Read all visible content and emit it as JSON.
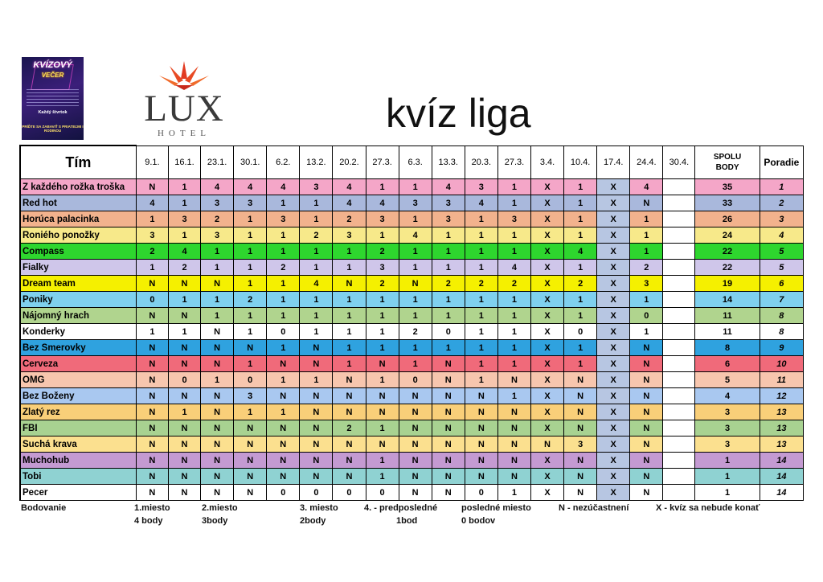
{
  "poster": {
    "title": "KVÍZOVÝ",
    "subtitle": "VEČER",
    "line1": "Každý štvrtok",
    "line2": "PRÍĎTE SA ZABAVIŤ S PRIATEĽMI I RODINOU"
  },
  "logo": {
    "brand": "LUX",
    "sub": "HOTEL"
  },
  "title": "kvíz liga",
  "header": {
    "team": "Tím",
    "dates": [
      "9.1.",
      "16.1.",
      "23.1.",
      "30.1.",
      "6.2.",
      "13.2.",
      "20.2.",
      "27.3.",
      "6.3.",
      "13.3.",
      "20.3.",
      "27.3.",
      "3.4.",
      "10.4.",
      "17.4.",
      "24.4.",
      "30.4."
    ],
    "sum_line1": "SPOLU",
    "sum_line2": "BODY",
    "rank": "Poradie"
  },
  "rows": [
    {
      "team": "Z každého rožka troška",
      "color": "#f4a6c8",
      "scores": [
        "N",
        "1",
        "4",
        "4",
        "4",
        "3",
        "4",
        "1",
        "1",
        "4",
        "3",
        "1",
        "X",
        "1",
        "X",
        "4",
        ""
      ],
      "total": "35",
      "rank": "1"
    },
    {
      "team": "Red hot",
      "color": "#a9b8dc",
      "scores": [
        "4",
        "1",
        "3",
        "3",
        "1",
        "1",
        "4",
        "4",
        "3",
        "3",
        "4",
        "1",
        "X",
        "1",
        "X",
        "N",
        ""
      ],
      "total": "33",
      "rank": "2"
    },
    {
      "team": "Horúca palacinka",
      "color": "#f2b28d",
      "scores": [
        "1",
        "3",
        "2",
        "1",
        "3",
        "1",
        "2",
        "3",
        "1",
        "3",
        "1",
        "3",
        "X",
        "1",
        "X",
        "1",
        ""
      ],
      "total": "26",
      "rank": "3"
    },
    {
      "team": "Roniého ponožky",
      "color": "#f7e98a",
      "scores": [
        "3",
        "1",
        "3",
        "1",
        "1",
        "2",
        "3",
        "1",
        "4",
        "1",
        "1",
        "1",
        "X",
        "1",
        "X",
        "1",
        ""
      ],
      "total": "24",
      "rank": "4"
    },
    {
      "team": "Compass",
      "color": "#2ed62e",
      "scores": [
        "2",
        "4",
        "1",
        "1",
        "1",
        "1",
        "1",
        "2",
        "1",
        "1",
        "1",
        "1",
        "X",
        "4",
        "X",
        "1",
        ""
      ],
      "total": "22",
      "rank": "5"
    },
    {
      "team": "Fialky",
      "color": "#cfc6ea",
      "scores": [
        "1",
        "2",
        "1",
        "1",
        "2",
        "1",
        "1",
        "3",
        "1",
        "1",
        "1",
        "4",
        "X",
        "1",
        "X",
        "2",
        ""
      ],
      "total": "22",
      "rank": "5"
    },
    {
      "team": "Dream team",
      "color": "#f5f000",
      "scores": [
        "N",
        "N",
        "N",
        "1",
        "1",
        "4",
        "N",
        "2",
        "N",
        "2",
        "2",
        "2",
        "X",
        "2",
        "X",
        "3",
        ""
      ],
      "total": "19",
      "rank": "6"
    },
    {
      "team": "Poniky",
      "color": "#7fd0ee",
      "scores": [
        "0",
        "1",
        "1",
        "2",
        "1",
        "1",
        "1",
        "1",
        "1",
        "1",
        "1",
        "1",
        "X",
        "1",
        "X",
        "1",
        ""
      ],
      "total": "14",
      "rank": "7"
    },
    {
      "team": "Nájomný hrach",
      "color": "#b0d48e",
      "scores": [
        "N",
        "N",
        "1",
        "1",
        "1",
        "1",
        "1",
        "1",
        "1",
        "1",
        "1",
        "1",
        "X",
        "1",
        "X",
        "0",
        ""
      ],
      "total": "11",
      "rank": "8"
    },
    {
      "team": "Konderky",
      "color": "#ffffff",
      "scores": [
        "1",
        "1",
        "N",
        "1",
        "0",
        "1",
        "1",
        "1",
        "2",
        "0",
        "1",
        "1",
        "X",
        "0",
        "X",
        "1",
        ""
      ],
      "total": "11",
      "rank": "8"
    },
    {
      "team": "Bez Smerovky",
      "color": "#2fa2df",
      "scores": [
        "N",
        "N",
        "N",
        "N",
        "1",
        "N",
        "1",
        "1",
        "1",
        "1",
        "1",
        "1",
        "X",
        "1",
        "X",
        "N",
        ""
      ],
      "total": "8",
      "rank": "9"
    },
    {
      "team": "Cerveza",
      "color": "#f06a7a",
      "scores": [
        "N",
        "N",
        "N",
        "1",
        "N",
        "N",
        "1",
        "N",
        "1",
        "N",
        "1",
        "1",
        "X",
        "1",
        "X",
        "N",
        ""
      ],
      "total": "6",
      "rank": "10"
    },
    {
      "team": "OMG",
      "color": "#f7c6ae",
      "scores": [
        "N",
        "0",
        "1",
        "0",
        "1",
        "1",
        "N",
        "1",
        "0",
        "N",
        "1",
        "N",
        "X",
        "N",
        "X",
        "N",
        ""
      ],
      "total": "5",
      "rank": "11"
    },
    {
      "team": "Bez Boženy",
      "color": "#a9c8f0",
      "scores": [
        "N",
        "N",
        "N",
        "3",
        "N",
        "N",
        "N",
        "N",
        "N",
        "N",
        "N",
        "1",
        "X",
        "N",
        "X",
        "N",
        ""
      ],
      "total": "4",
      "rank": "12"
    },
    {
      "team": "Zlatý rez",
      "color": "#f9cf79",
      "scores": [
        "N",
        "1",
        "N",
        "1",
        "1",
        "N",
        "N",
        "N",
        "N",
        "N",
        "N",
        "N",
        "X",
        "N",
        "X",
        "N",
        ""
      ],
      "total": "3",
      "rank": "13"
    },
    {
      "team": "FBI",
      "color": "#a8d291",
      "scores": [
        "N",
        "N",
        "N",
        "N",
        "N",
        "N",
        "2",
        "1",
        "N",
        "N",
        "N",
        "N",
        "X",
        "N",
        "X",
        "N",
        ""
      ],
      "total": "3",
      "rank": "13"
    },
    {
      "team": "Suchá krava",
      "color": "#fbe08f",
      "scores": [
        "N",
        "N",
        "N",
        "N",
        "N",
        "N",
        "N",
        "N",
        "N",
        "N",
        "N",
        "N",
        "N",
        "3",
        "X",
        "N",
        ""
      ],
      "total": "3",
      "rank": "13"
    },
    {
      "team": "Muchohub",
      "color": "#c49ad2",
      "scores": [
        "N",
        "N",
        "N",
        "N",
        "N",
        "N",
        "N",
        "1",
        "N",
        "N",
        "N",
        "N",
        "X",
        "N",
        "X",
        "N",
        ""
      ],
      "total": "1",
      "rank": "14"
    },
    {
      "team": "Tobi",
      "color": "#8fd2d2",
      "scores": [
        "N",
        "N",
        "N",
        "N",
        "N",
        "N",
        "N",
        "1",
        "N",
        "N",
        "N",
        "N",
        "X",
        "N",
        "X",
        "N",
        ""
      ],
      "total": "1",
      "rank": "14"
    },
    {
      "team": "Pecer",
      "color": "#ffffff",
      "scores": [
        "N",
        "N",
        "N",
        "N",
        "0",
        "0",
        "0",
        "0",
        "N",
        "N",
        "0",
        "1",
        "X",
        "N",
        "X",
        "N",
        ""
      ],
      "total": "1",
      "rank": "14"
    }
  ],
  "legend": {
    "label": "Bodovanie",
    "first_a": "1.miesto",
    "first_b": "4 body",
    "second_a": "2.miesto",
    "second_b": "3body",
    "third_a": "3. miesto",
    "third_b": "2body",
    "penult_a": "4. - predposledné",
    "penult_b": "1bod",
    "last_a": "posledné miesto",
    "last_b": "0 bodov",
    "n_note": "N - nezúčastnení",
    "x_note": "X - kvíz sa nebude konať"
  }
}
